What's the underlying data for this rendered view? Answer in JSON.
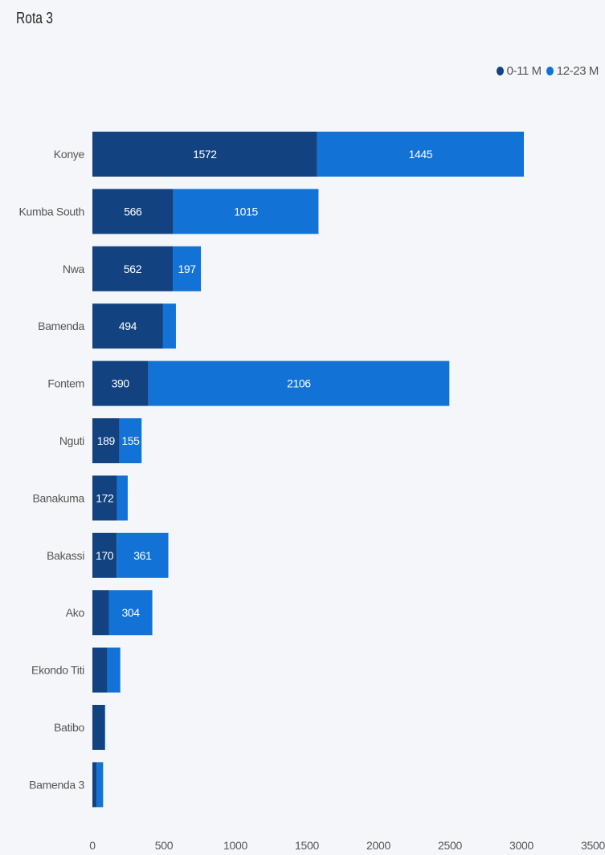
{
  "title": "Rota 3",
  "legend": {
    "placement": "top-right",
    "items": [
      {
        "label": "0-11 M",
        "color": "#12427f"
      },
      {
        "label": "12-23 M",
        "color": "#1272d6"
      }
    ]
  },
  "chart_data": {
    "type": "bar",
    "orientation": "horizontal",
    "stacked": true,
    "title": "Rota 3",
    "xlabel": "",
    "ylabel": "",
    "xlim": [
      0,
      3500
    ],
    "xticks": [
      0,
      500,
      1000,
      1500,
      2000,
      2500,
      3000,
      3500
    ],
    "grid": false,
    "categories": [
      "Konye",
      "Kumba South",
      "Nwa",
      "Bamenda",
      "Fontem",
      "Nguti",
      "Banakuma",
      "Bakassi",
      "Ako",
      "Ekondo Titi",
      "Batibo",
      "Bamenda 3"
    ],
    "series": [
      {
        "name": "0-11 M",
        "color": "#12427f",
        "values": [
          1572,
          566,
          562,
          494,
          390,
          189,
          172,
          170,
          115,
          105,
          85,
          30
        ],
        "labels": [
          "1572",
          "566",
          "562",
          "494",
          "390",
          "189",
          "172",
          "170",
          "",
          "",
          "",
          ""
        ]
      },
      {
        "name": "12-23 M",
        "color": "#1272d6",
        "values": [
          1445,
          1015,
          197,
          90,
          2106,
          155,
          75,
          361,
          304,
          90,
          5,
          45
        ],
        "labels": [
          "1445",
          "1015",
          "197",
          "",
          "2106",
          "155",
          "",
          "361",
          "304",
          "",
          "",
          ""
        ]
      }
    ]
  }
}
